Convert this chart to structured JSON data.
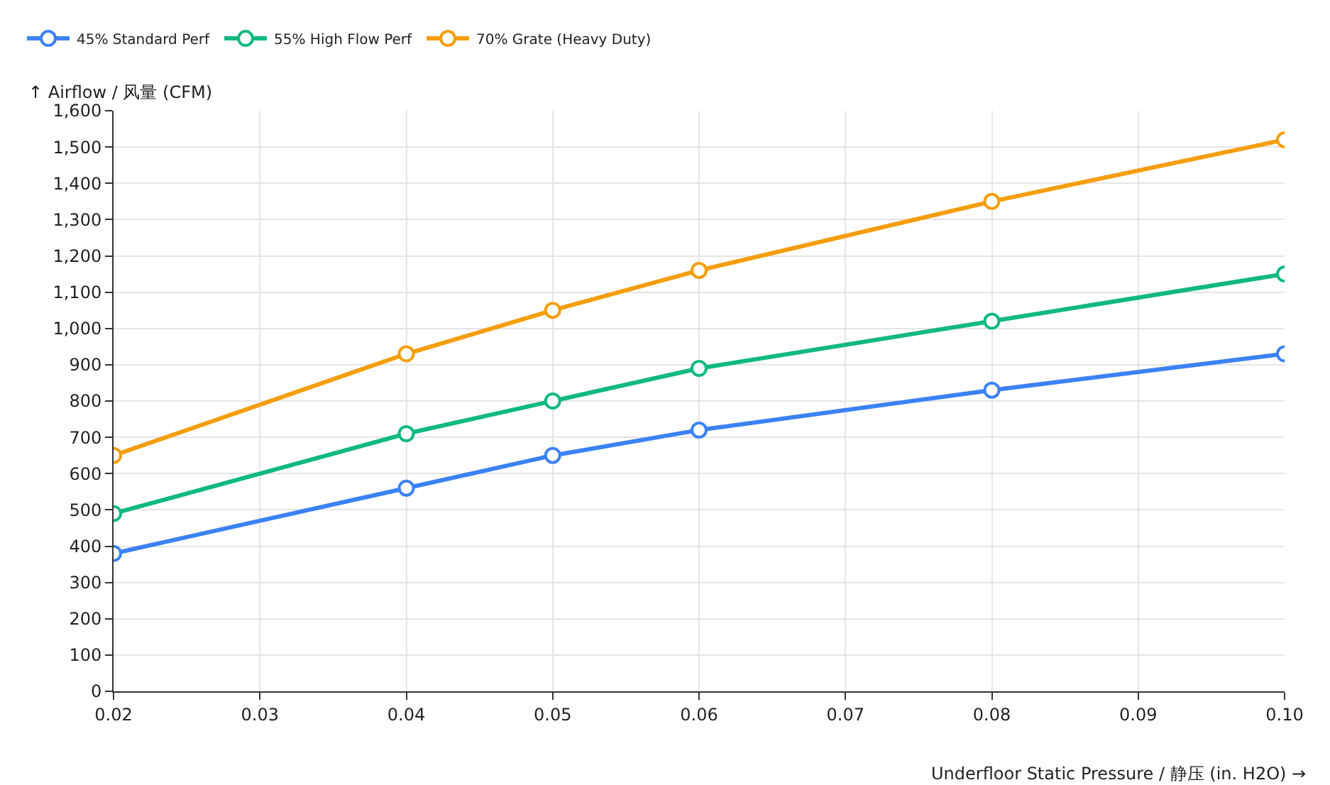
{
  "chart_data": {
    "type": "line",
    "xlabel": "Underfloor Static Pressure / 静压 (in. H2O) →",
    "ylabel": "↑ Airflow / 风量 (CFM)",
    "x": [
      0.02,
      0.04,
      0.05,
      0.06,
      0.08,
      0.1
    ],
    "series": [
      {
        "name": "45% Standard Perf",
        "color": "#3b82f6",
        "values": [
          380,
          560,
          650,
          720,
          830,
          930
        ]
      },
      {
        "name": "55% High Flow Perf",
        "color": "#10b981",
        "values": [
          490,
          710,
          800,
          890,
          1020,
          1150
        ]
      },
      {
        "name": "70% Grate (Heavy Duty)",
        "color": "#f59e0b",
        "values": [
          650,
          930,
          1050,
          1160,
          1350,
          1520
        ]
      }
    ],
    "xlim": [
      0.02,
      0.1
    ],
    "xticks": [
      {
        "value": 0.02,
        "label": "0.02"
      },
      {
        "value": 0.03,
        "label": "0.03"
      },
      {
        "value": 0.04,
        "label": "0.04"
      },
      {
        "value": 0.05,
        "label": "0.05"
      },
      {
        "value": 0.06,
        "label": "0.06"
      },
      {
        "value": 0.07,
        "label": "0.07"
      },
      {
        "value": 0.08,
        "label": "0.08"
      },
      {
        "value": 0.09,
        "label": "0.09"
      },
      {
        "value": 0.1,
        "label": "0.10"
      }
    ],
    "ylim": [
      0,
      1600
    ],
    "yticks": [
      0,
      100,
      200,
      300,
      400,
      500,
      600,
      700,
      800,
      900,
      {
        "value": 1000,
        "label": "1,000"
      },
      {
        "value": 1100,
        "label": "1,100"
      },
      {
        "value": 1200,
        "label": "1,200"
      },
      {
        "value": 1300,
        "label": "1,300"
      },
      {
        "value": 1400,
        "label": "1,400"
      },
      {
        "value": 1500,
        "label": "1,500"
      },
      {
        "value": 1600,
        "label": "1,600"
      }
    ],
    "grid": true,
    "legend": "top left",
    "marker": "circle",
    "line_style": "solid"
  }
}
